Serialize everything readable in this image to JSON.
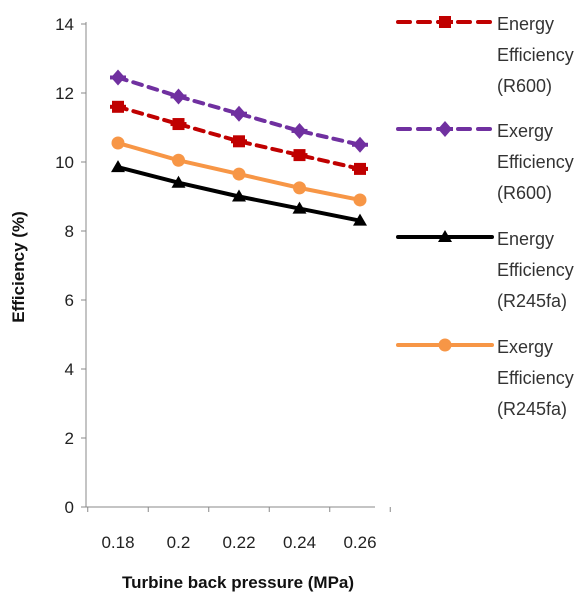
{
  "chart_data": {
    "type": "line",
    "title": "",
    "xlabel": "Turbine back pressure (MPa)",
    "ylabel": "Efficiency (%)",
    "categories": [
      "0.18",
      "0.2",
      "0.22",
      "0.24",
      "0.26"
    ],
    "x": [
      0.18,
      0.2,
      0.22,
      0.24,
      0.26
    ],
    "ylim": [
      0,
      14
    ],
    "yticks": [
      "0",
      "2",
      "4",
      "6",
      "8",
      "10",
      "12",
      "14"
    ],
    "grid": false,
    "legend_position": "right",
    "series": [
      {
        "legend_lines": [
          "Energy",
          "Efficiency",
          "(R600)"
        ],
        "values": [
          11.6,
          11.1,
          10.6,
          10.2,
          9.8
        ],
        "color": "#c00000",
        "line_style": "dashed",
        "marker": "square"
      },
      {
        "legend_lines": [
          "Exergy",
          "Efficiency",
          "(R600)"
        ],
        "values": [
          12.45,
          11.9,
          11.4,
          10.9,
          10.5
        ],
        "color": "#7030a0",
        "line_style": "dashed",
        "marker": "diamond"
      },
      {
        "legend_lines": [
          "Energy",
          "Efficiency",
          "(R245fa)"
        ],
        "values": [
          9.85,
          9.4,
          9.0,
          8.65,
          8.3
        ],
        "color": "#000000",
        "line_style": "solid",
        "marker": "triangle"
      },
      {
        "legend_lines": [
          "Exergy",
          "Efficiency",
          "(R245fa)"
        ],
        "values": [
          10.55,
          10.05,
          9.65,
          9.25,
          8.9
        ],
        "color": "#f79646",
        "line_style": "solid",
        "marker": "circle"
      }
    ]
  }
}
